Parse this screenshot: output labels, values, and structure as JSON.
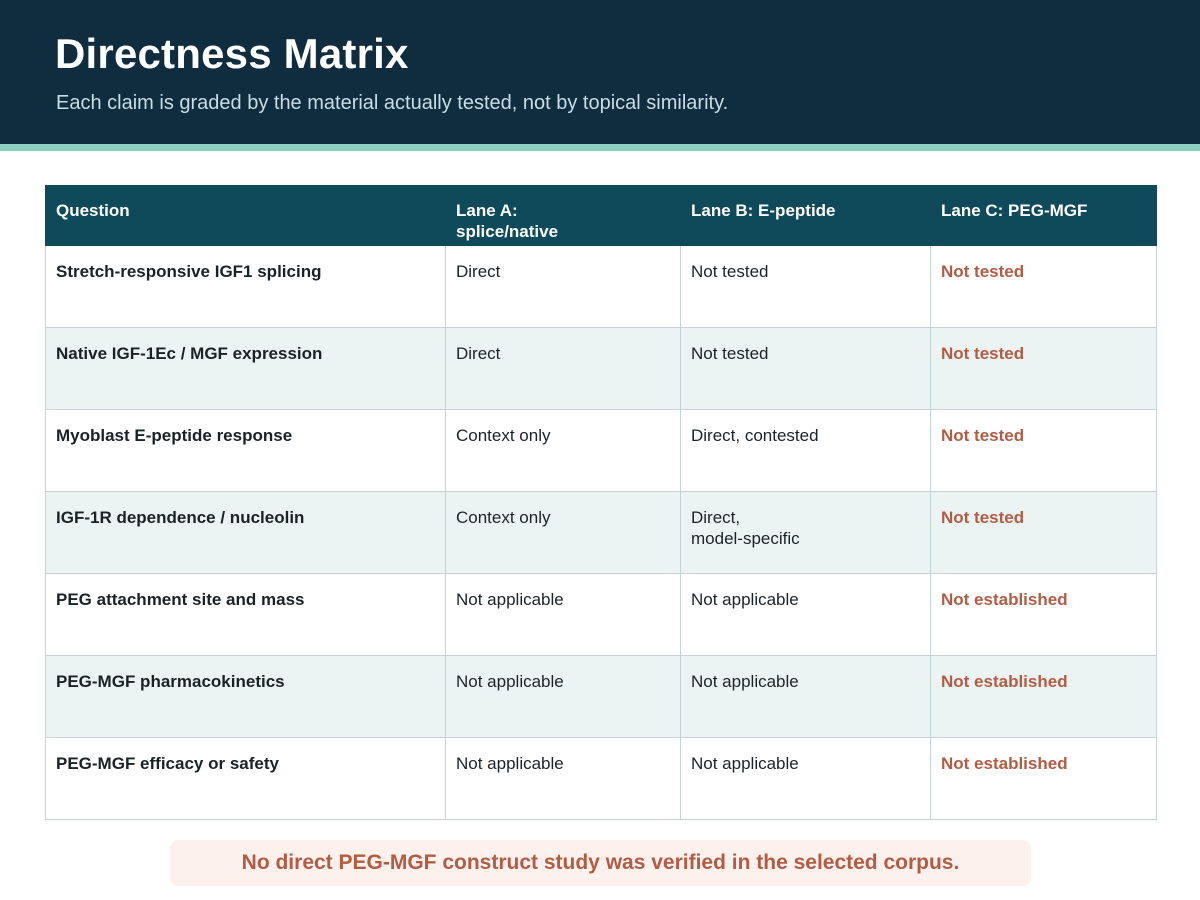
{
  "header": {
    "title": "Directness Matrix",
    "subtitle": "Each claim is graded by the material actually tested, not by topical similarity."
  },
  "table": {
    "columns": [
      "Question",
      "Lane A:\nsplice/native",
      "Lane B: E-peptide",
      "Lane C: PEG-MGF"
    ],
    "rows": [
      {
        "question": "Stretch-responsive IGF1 splicing",
        "lane_a": "Direct",
        "lane_b": "Not tested",
        "lane_c": "Not tested"
      },
      {
        "question": "Native IGF-1Ec / MGF expression",
        "lane_a": "Direct",
        "lane_b": "Not tested",
        "lane_c": "Not tested"
      },
      {
        "question": "Myoblast E-peptide response",
        "lane_a": "Context only",
        "lane_b": "Direct, contested",
        "lane_c": "Not tested"
      },
      {
        "question": "IGF-1R dependence / nucleolin",
        "lane_a": "Context only",
        "lane_b": "Direct,\nmodel-specific",
        "lane_c": "Not tested"
      },
      {
        "question": "PEG attachment site and mass",
        "lane_a": "Not applicable",
        "lane_b": "Not applicable",
        "lane_c": "Not established"
      },
      {
        "question": "PEG-MGF pharmacokinetics",
        "lane_a": "Not applicable",
        "lane_b": "Not applicable",
        "lane_c": "Not established"
      },
      {
        "question": "PEG-MGF efficacy or safety",
        "lane_a": "Not applicable",
        "lane_b": "Not applicable",
        "lane_c": "Not established"
      }
    ]
  },
  "footer": {
    "note": "No direct PEG-MGF construct study was verified in the selected corpus."
  },
  "colors": {
    "header_bg": "#0f2d3f",
    "accent_stripe": "#8fcfbf",
    "table_header_bg": "#0f4a5a",
    "alt_row_bg": "#ecf4f3",
    "lane_c_text": "#b35c44",
    "note_bg": "#fdf1ee"
  }
}
